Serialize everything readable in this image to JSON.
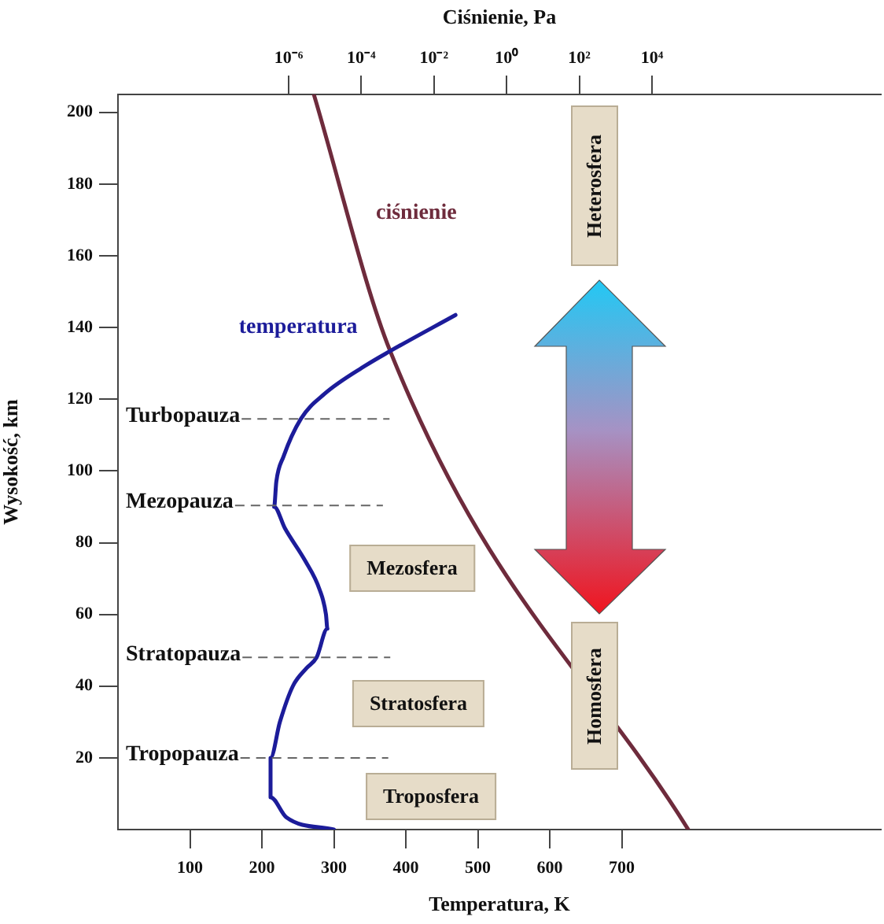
{
  "chart_data": {
    "type": "line",
    "xlabel": "Temperatura, K",
    "ylabel": "Wysokość, km",
    "x2label": "Ciśnienie, Pa",
    "xlim": [
      0,
      1060
    ],
    "xticks": [
      100,
      200,
      300,
      400,
      500,
      600,
      700
    ],
    "ylim": [
      0,
      205
    ],
    "yticks": [
      20,
      40,
      60,
      80,
      100,
      120,
      140,
      160,
      180,
      200
    ],
    "x2lim": [
      2e-11,
      20000000000.0
    ],
    "x2ticks": [
      {
        "value": 1e-06,
        "label": "10⁻⁶"
      },
      {
        "value": 0.0001,
        "label": "10⁻⁴"
      },
      {
        "value": 0.01,
        "label": "10⁻²"
      },
      {
        "value": 1,
        "label": "10⁰"
      },
      {
        "value": 100,
        "label": "10²"
      },
      {
        "value": 10000,
        "label": "10⁴"
      }
    ],
    "log": "x2",
    "grid": false,
    "legend": false,
    "marker": "none",
    "line_style": "solid",
    "series": [
      {
        "name": "temperatura",
        "color": "#1c1c9a",
        "x": [
          300,
          234,
          212,
          212,
          225,
          243,
          262,
          276,
          291,
          289,
          280,
          260,
          232,
          217,
          220,
          230,
          254,
          287,
          344,
          377,
          469
        ],
        "values": [
          0,
          3.4,
          9,
          20,
          30,
          40,
          45,
          48,
          56,
          60,
          67,
          75,
          84,
          90,
          97,
          104,
          114.5,
          121.5,
          129.4,
          133.3,
          143.5
        ]
      },
      {
        "name": "ciśnienie",
        "color": "#6e2b3c",
        "axis": "x2",
        "x": [
          100000,
          0.00063,
          5e-06
        ],
        "values": [
          0,
          133.3,
          204.8
        ]
      }
    ],
    "ref_lines": [
      {
        "axis": "y",
        "value": 114.5,
        "label": "Turbopauza"
      },
      {
        "axis": "y",
        "value": 90.4,
        "label": "Mezopauza"
      },
      {
        "axis": "y",
        "value": 48,
        "label": "Stratopauza"
      },
      {
        "axis": "y",
        "value": 20,
        "label": "Tropopauza"
      }
    ],
    "annotations": [
      "Heterosfera",
      "Mezosfera",
      "Stratosfera",
      "Homosfera",
      "Troposfera"
    ]
  }
}
